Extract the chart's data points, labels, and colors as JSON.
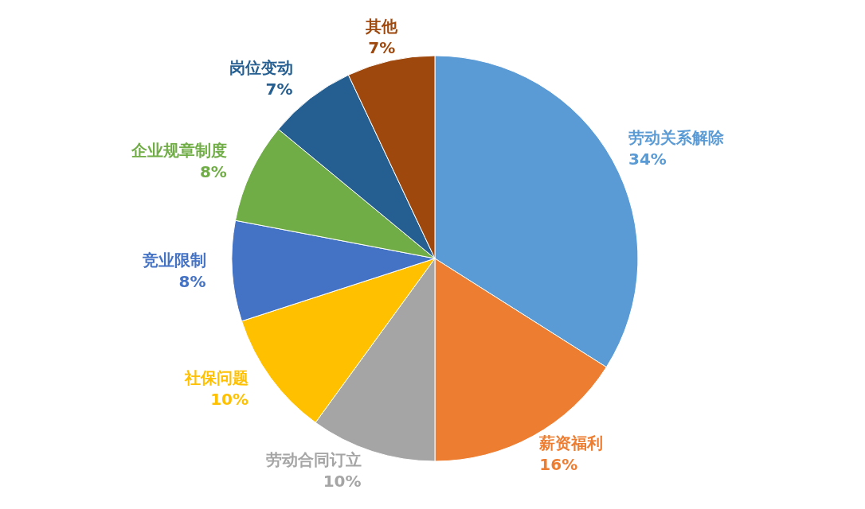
{
  "chart_data": {
    "type": "pie",
    "categories": [
      "劳动关系解除",
      "薪资福利",
      "劳动合同订立",
      "社保问题",
      "竞业限制",
      "企业规章制度",
      "岗位变动",
      "其他"
    ],
    "values": [
      34,
      16,
      10,
      10,
      8,
      8,
      7,
      7
    ],
    "value_labels": [
      "34%",
      "16%",
      "10%",
      "10%",
      "8%",
      "8%",
      "7%",
      "7%"
    ],
    "colors": [
      "#5b9bd5",
      "#ed7d31",
      "#a5a5a5",
      "#ffc000",
      "#4472c4",
      "#70ad47",
      "#255e91",
      "#9e480e"
    ],
    "legend": false
  }
}
